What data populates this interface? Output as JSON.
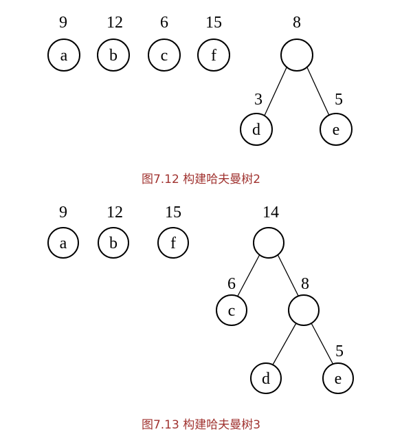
{
  "figure_1": {
    "caption": "图7.12 构建哈夫曼树2",
    "nodes": {
      "a": {
        "label": "a",
        "weight": "9"
      },
      "b": {
        "label": "b",
        "weight": "12"
      },
      "c": {
        "label": "c",
        "weight": "6"
      },
      "f": {
        "label": "f",
        "weight": "15"
      },
      "root": {
        "label": "",
        "weight": "8"
      },
      "d": {
        "label": "d",
        "weight": "3"
      },
      "e": {
        "label": "e",
        "weight": "5"
      }
    }
  },
  "figure_2": {
    "caption": "图7.13 构建哈夫曼树3",
    "nodes": {
      "a": {
        "label": "a",
        "weight": "9"
      },
      "b": {
        "label": "b",
        "weight": "12"
      },
      "f": {
        "label": "f",
        "weight": "15"
      },
      "root": {
        "label": "",
        "weight": "14"
      },
      "c": {
        "label": "c",
        "weight": "6"
      },
      "inner": {
        "label": "",
        "weight": "8"
      },
      "d": {
        "label": "d",
        "weight": ""
      },
      "e": {
        "label": "e",
        "weight": "5"
      }
    }
  },
  "colors": {
    "caption": "#a0322f",
    "stroke": "#000000"
  }
}
